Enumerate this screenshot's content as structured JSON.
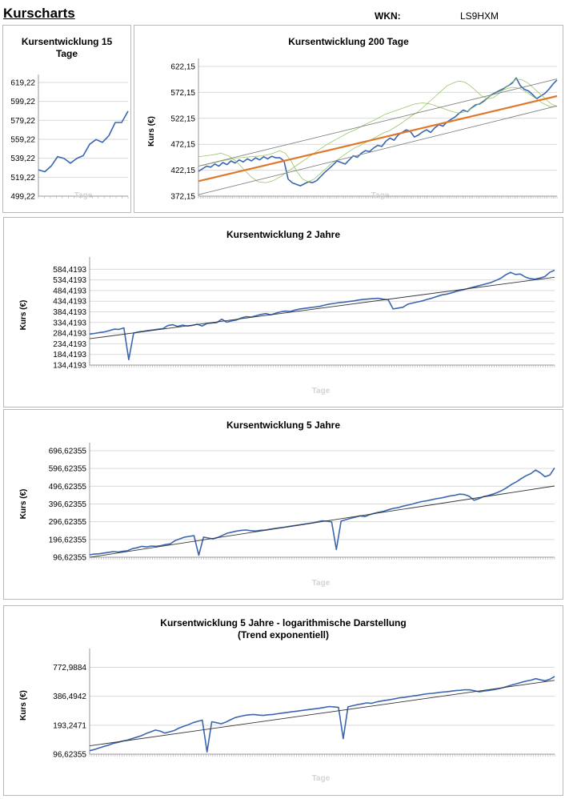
{
  "header": {
    "title": "Kurscharts",
    "wkn_label": "WKN:",
    "wkn_value": "LS9HXM"
  },
  "chart_data": [
    {
      "id": "c15",
      "type": "line",
      "title": [
        "Kursentwicklung 15",
        "Tage"
      ],
      "xlabel": "Tage",
      "ylabel": "",
      "yticks": [
        "619,22",
        "599,22",
        "579,22",
        "559,22",
        "539,22",
        "519,22",
        "499,22"
      ],
      "ylim": [
        499.22,
        619.22
      ],
      "series": [
        {
          "color": "#3a66b0",
          "values": [
            527,
            525,
            531,
            541,
            539,
            534,
            539,
            542,
            554,
            559,
            556,
            563,
            577,
            577,
            589
          ]
        }
      ]
    },
    {
      "id": "c200",
      "type": "line",
      "title": [
        "Kursentwicklung 200 Tage"
      ],
      "xlabel": "Tage",
      "ylabel": "Kurs (€)",
      "yticks": [
        "622,15",
        "572,15",
        "522,15",
        "472,15",
        "422,15",
        "372,15"
      ],
      "ylim": [
        372.15,
        622.15
      ],
      "series": [
        {
          "kind": "price",
          "color": "#3a66b0",
          "values": [
            420,
            425,
            430,
            428,
            434,
            430,
            437,
            433,
            440,
            436,
            442,
            438,
            444,
            440,
            446,
            442,
            448,
            444,
            449,
            446,
            446,
            440,
            405,
            398,
            395,
            392,
            396,
            400,
            398,
            402,
            410,
            418,
            425,
            432,
            440,
            437,
            434,
            442,
            450,
            447,
            455,
            460,
            458,
            465,
            470,
            468,
            478,
            484,
            480,
            490,
            495,
            500,
            497,
            486,
            490,
            496,
            500,
            495,
            504,
            510,
            507,
            515,
            520,
            525,
            532,
            538,
            535,
            542,
            548,
            550,
            555,
            562,
            568,
            572,
            576,
            580,
            585,
            590,
            600,
            585,
            578,
            575,
            568,
            560,
            565,
            570,
            578,
            588,
            596
          ]
        },
        {
          "kind": "ma_fast",
          "color": "#9bc86a",
          "values": [
            430,
            432,
            435,
            437,
            440,
            442,
            444,
            446,
            447,
            448,
            449,
            450,
            452,
            455,
            460,
            455,
            440,
            420,
            405,
            400,
            405,
            415,
            425,
            435,
            442,
            450,
            458,
            465,
            470,
            476,
            482,
            488,
            494,
            498,
            505,
            512,
            520,
            528,
            535,
            545,
            555,
            565,
            575,
            585,
            590,
            594,
            592,
            585,
            575,
            565,
            560,
            562,
            570,
            580,
            590,
            598,
            596,
            590,
            580,
            570,
            560,
            550,
            545
          ]
        },
        {
          "kind": "ma_slow",
          "color": "#9bc86a",
          "values": [
            448,
            450,
            452,
            455,
            450,
            440,
            425,
            410,
            400,
            398,
            402,
            410,
            420,
            430,
            440,
            450,
            460,
            470,
            478,
            486,
            494,
            500,
            508,
            515,
            522,
            530,
            535,
            540,
            545,
            550,
            552,
            550,
            545,
            540,
            535,
            532,
            536,
            545,
            555,
            565,
            572,
            578,
            582,
            580,
            572,
            562,
            552,
            545,
            545
          ]
        },
        {
          "kind": "trend",
          "color": "#e0782a",
          "values": [
            401,
            565
          ]
        },
        {
          "kind": "channel_upper",
          "color": "#808080",
          "values": [
            430,
            598
          ]
        },
        {
          "kind": "channel_lower",
          "color": "#808080",
          "values": [
            375,
            546
          ]
        }
      ]
    },
    {
      "id": "c2y",
      "type": "line",
      "title": [
        "Kursentwicklung 2 Jahre"
      ],
      "xlabel": "Tage",
      "ylabel": "Kurs (€)",
      "yticks": [
        "584,4193",
        "534,4193",
        "484,4193",
        "434,4193",
        "384,4193",
        "334,4193",
        "284,4193",
        "234,4193",
        "184,4193",
        "134,4193"
      ],
      "ylim": [
        134.4193,
        604.4193
      ],
      "series": [
        {
          "kind": "price",
          "color": "#3a66b0",
          "values": [
            280,
            283,
            287,
            290,
            296,
            303,
            302,
            309,
            160,
            285,
            290,
            293,
            297,
            300,
            303,
            306,
            320,
            324,
            316,
            322,
            318,
            321,
            326,
            318,
            330,
            332,
            334,
            350,
            336,
            342,
            346,
            356,
            362,
            360,
            366,
            372,
            376,
            370,
            378,
            384,
            388,
            386,
            393,
            398,
            401,
            404,
            407,
            410,
            416,
            421,
            424,
            428,
            430,
            433,
            436,
            440,
            443,
            445,
            447,
            448,
            444,
            441,
            398,
            402,
            406,
            420,
            426,
            431,
            436,
            443,
            449,
            457,
            464,
            468,
            474,
            481,
            486,
            492,
            498,
            504,
            510,
            516,
            522,
            532,
            542,
            558,
            570,
            560,
            562,
            548,
            540,
            538,
            543,
            550,
            570,
            580
          ]
        },
        {
          "kind": "trend",
          "color": "#333333",
          "values": [
            258,
            547
          ]
        }
      ]
    },
    {
      "id": "c5y",
      "type": "line",
      "title": [
        "Kursentwicklung 5 Jahre"
      ],
      "xlabel": "Tage",
      "ylabel": "Kurs (€)",
      "yticks": [
        "696,62355",
        "596,62355",
        "496,62355",
        "396,62355",
        "296,62355",
        "196,62355",
        "96,62355"
      ],
      "ylim": [
        96.62355,
        696.62355
      ],
      "series": [
        {
          "kind": "price",
          "color": "#3a66b0",
          "values": [
            110,
            114,
            116,
            120,
            124,
            128,
            126,
            130,
            133,
            145,
            150,
            158,
            155,
            160,
            158,
            162,
            168,
            172,
            190,
            200,
            210,
            214,
            218,
            108,
            210,
            205,
            200,
            208,
            220,
            232,
            238,
            244,
            248,
            250,
            246,
            244,
            248,
            250,
            254,
            258,
            262,
            266,
            270,
            274,
            278,
            282,
            286,
            290,
            296,
            302,
            300,
            296,
            140,
            300,
            308,
            316,
            322,
            330,
            326,
            336,
            344,
            350,
            356,
            364,
            372,
            376,
            384,
            390,
            396,
            404,
            410,
            414,
            420,
            426,
            430,
            436,
            442,
            446,
            452,
            450,
            440,
            418,
            426,
            438,
            444,
            452,
            462,
            474,
            490,
            508,
            522,
            540,
            556,
            568,
            588,
            572,
            550,
            560,
            600
          ]
        },
        {
          "kind": "trend",
          "color": "#333333",
          "values": [
            96,
            498
          ]
        }
      ]
    },
    {
      "id": "c5ylog",
      "type": "line",
      "title": [
        "Kursentwicklung 5 Jahre - logarithmische Darstellung",
        "(Trend exponentiell)"
      ],
      "xlabel": "Tage",
      "ylabel": "Kurs (€)",
      "scale": "log",
      "yticks": [
        "772,9884",
        "386,4942",
        "193,2471",
        "96,62355"
      ],
      "ylim": [
        96.62355,
        1000
      ],
      "series": [
        {
          "kind": "price",
          "color": "#3a66b0",
          "values": [
            105,
            108,
            112,
            116,
            120,
            125,
            128,
            132,
            135,
            140,
            145,
            150,
            158,
            165,
            172,
            168,
            160,
            165,
            170,
            180,
            188,
            195,
            205,
            212,
            218,
            102,
            210,
            205,
            200,
            208,
            220,
            232,
            238,
            244,
            248,
            250,
            246,
            244,
            248,
            250,
            254,
            258,
            262,
            266,
            270,
            274,
            278,
            282,
            286,
            290,
            296,
            302,
            300,
            296,
            140,
            300,
            308,
            316,
            322,
            330,
            326,
            336,
            344,
            350,
            356,
            364,
            372,
            376,
            384,
            390,
            396,
            404,
            410,
            414,
            420,
            426,
            430,
            436,
            442,
            446,
            452,
            450,
            440,
            430,
            438,
            444,
            452,
            462,
            474,
            490,
            508,
            522,
            540,
            556,
            568,
            588,
            572,
            560,
            580,
            620
          ]
        },
        {
          "kind": "trend",
          "color": "#333333",
          "values": [
            118,
            565
          ]
        }
      ]
    }
  ]
}
